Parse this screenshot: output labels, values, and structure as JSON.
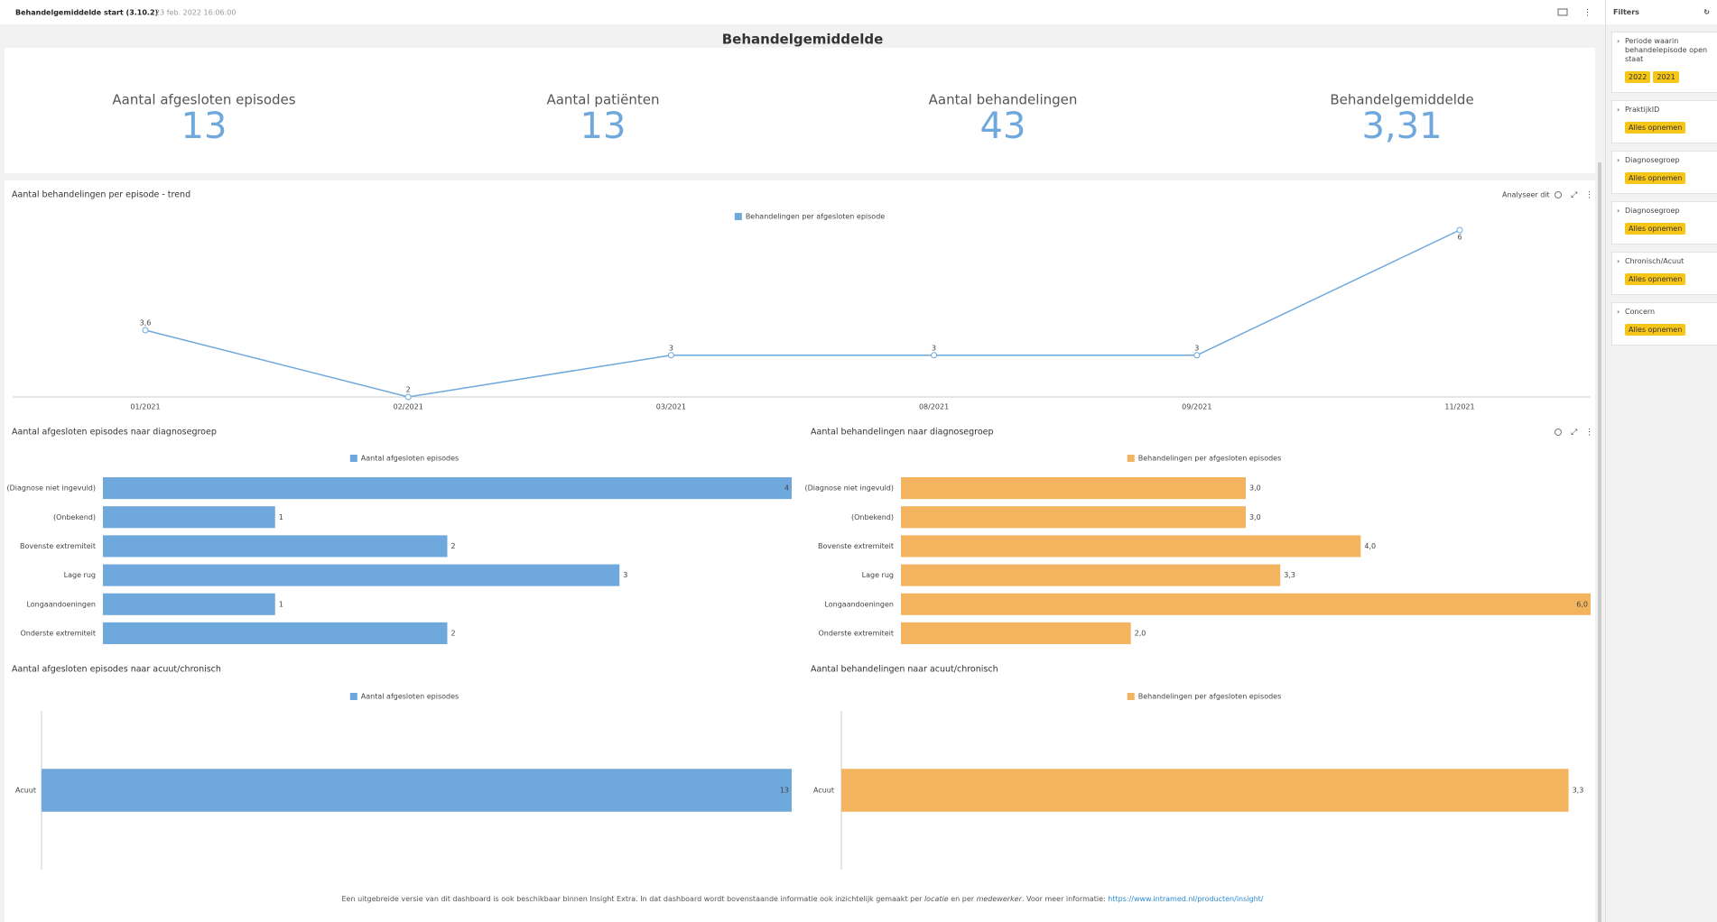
{
  "header": {
    "title": "Behandelgemiddelde start (3.10.2)",
    "timestamp": "23 feb. 2022 16:06:00"
  },
  "page_title": "Behandelgemiddelde",
  "kpis": [
    {
      "label": "Aantal afgesloten episodes",
      "value": "13"
    },
    {
      "label": "Aantal patiënten",
      "value": "13"
    },
    {
      "label": "Aantal behandelingen",
      "value": "43"
    },
    {
      "label": "Behandelgemiddelde",
      "value": "3,31"
    }
  ],
  "analyse_label": "Analyseer dit",
  "chart_data": [
    {
      "type": "line",
      "title": "Aantal behandelingen per episode - trend",
      "categories": [
        "01/2021",
        "02/2021",
        "03/2021",
        "08/2021",
        "09/2021",
        "11/2021"
      ],
      "series": [
        {
          "name": "Behandelingen per afgesloten episode",
          "color": "#6fa8dc",
          "values": [
            3.6,
            2,
            3,
            3,
            3,
            6
          ],
          "value_labels": [
            "3,6",
            "2",
            "3",
            "3",
            "3",
            "6"
          ]
        }
      ],
      "ylim": [
        2,
        6
      ]
    },
    {
      "type": "bar",
      "horizontal": true,
      "title": "Aantal afgesloten episodes naar diagnosegroep",
      "categories": [
        "(Diagnose niet ingevuld)",
        "(Onbekend)",
        "Bovenste extremiteit",
        "Lage rug",
        "Longaandoeningen",
        "Onderste extremiteit"
      ],
      "series": [
        {
          "name": "Aantal afgesloten episodes",
          "color": "#6fa8dc",
          "values": [
            4,
            1,
            2,
            3,
            1,
            2
          ]
        }
      ],
      "xlim": [
        0,
        4
      ]
    },
    {
      "type": "bar",
      "horizontal": true,
      "title": "Aantal behandelingen naar diagnosegroep",
      "categories": [
        "(Diagnose niet ingevuld)",
        "(Onbekend)",
        "Bovenste extremiteit",
        "Lage rug",
        "Longaandoeningen",
        "Onderste extremiteit"
      ],
      "series": [
        {
          "name": "Behandelingen per afgesloten episodes",
          "color": "#f4b35e",
          "values": [
            3,
            3,
            4,
            3.3,
            6,
            2
          ],
          "value_labels": [
            "3,0",
            "3,0",
            "4,0",
            "3,3",
            "6,0",
            "2,0"
          ]
        }
      ],
      "xlim": [
        0,
        6
      ]
    },
    {
      "type": "bar",
      "horizontal": true,
      "title": "Aantal afgesloten episodes naar acuut/chronisch",
      "categories": [
        "Acuut"
      ],
      "series": [
        {
          "name": "Aantal afgesloten episodes",
          "color": "#6fa8dc",
          "values": [
            13
          ]
        }
      ],
      "xlim": [
        0,
        13
      ]
    },
    {
      "type": "bar",
      "horizontal": true,
      "title": "Aantal behandelingen naar acuut/chronisch",
      "categories": [
        "Acuut"
      ],
      "series": [
        {
          "name": "Behandelingen per afgesloten episodes",
          "color": "#f4b35e",
          "values": [
            3.3
          ],
          "value_labels": [
            "3,3"
          ]
        }
      ],
      "xlim": [
        0,
        3.4
      ]
    }
  ],
  "filters": {
    "title": "Filters",
    "items": [
      {
        "label": "Periode waarin behandelepisode open staat",
        "chips": [
          "2022",
          "2021"
        ]
      },
      {
        "label": "PraktijkID",
        "chips": [
          "Alles opnemen"
        ]
      },
      {
        "label": "Diagnosegroep",
        "chips": [
          "Alles opnemen"
        ]
      },
      {
        "label": "Diagnosegroep",
        "chips": [
          "Alles opnemen"
        ]
      },
      {
        "label": "Chronisch/Acuut",
        "chips": [
          "Alles opnemen"
        ]
      },
      {
        "label": "Concern",
        "chips": [
          "Alles opnemen"
        ]
      }
    ]
  },
  "footer": {
    "parts": [
      "Een uitgebreide versie van dit dashboard is ook beschikbaar binnen Insight Extra. In dat dashboard wordt bovenstaande informatie ook inzichtelijk gemaakt per ",
      "locatie",
      " en per ",
      "medewerker",
      ". Voor meer informatie: "
    ],
    "link": "https://www.intramed.nl/producten/insight/"
  }
}
